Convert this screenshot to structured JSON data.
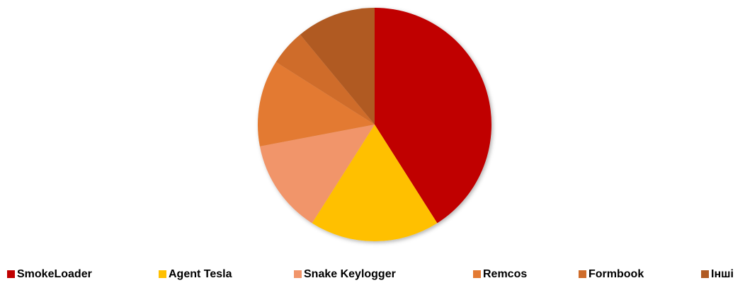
{
  "chart_data": {
    "type": "pie",
    "categories": [
      "SmokeLoader",
      "Agent Tesla",
      "Snake Keylogger",
      "Remcos",
      "Formbook",
      "Інші"
    ],
    "values": [
      41,
      18,
      13,
      12,
      5,
      11
    ],
    "colors": [
      "#c00000",
      "#ffc000",
      "#f1956a",
      "#e37a32",
      "#cf6c2a",
      "#b05a22"
    ],
    "legend": "bottom"
  }
}
